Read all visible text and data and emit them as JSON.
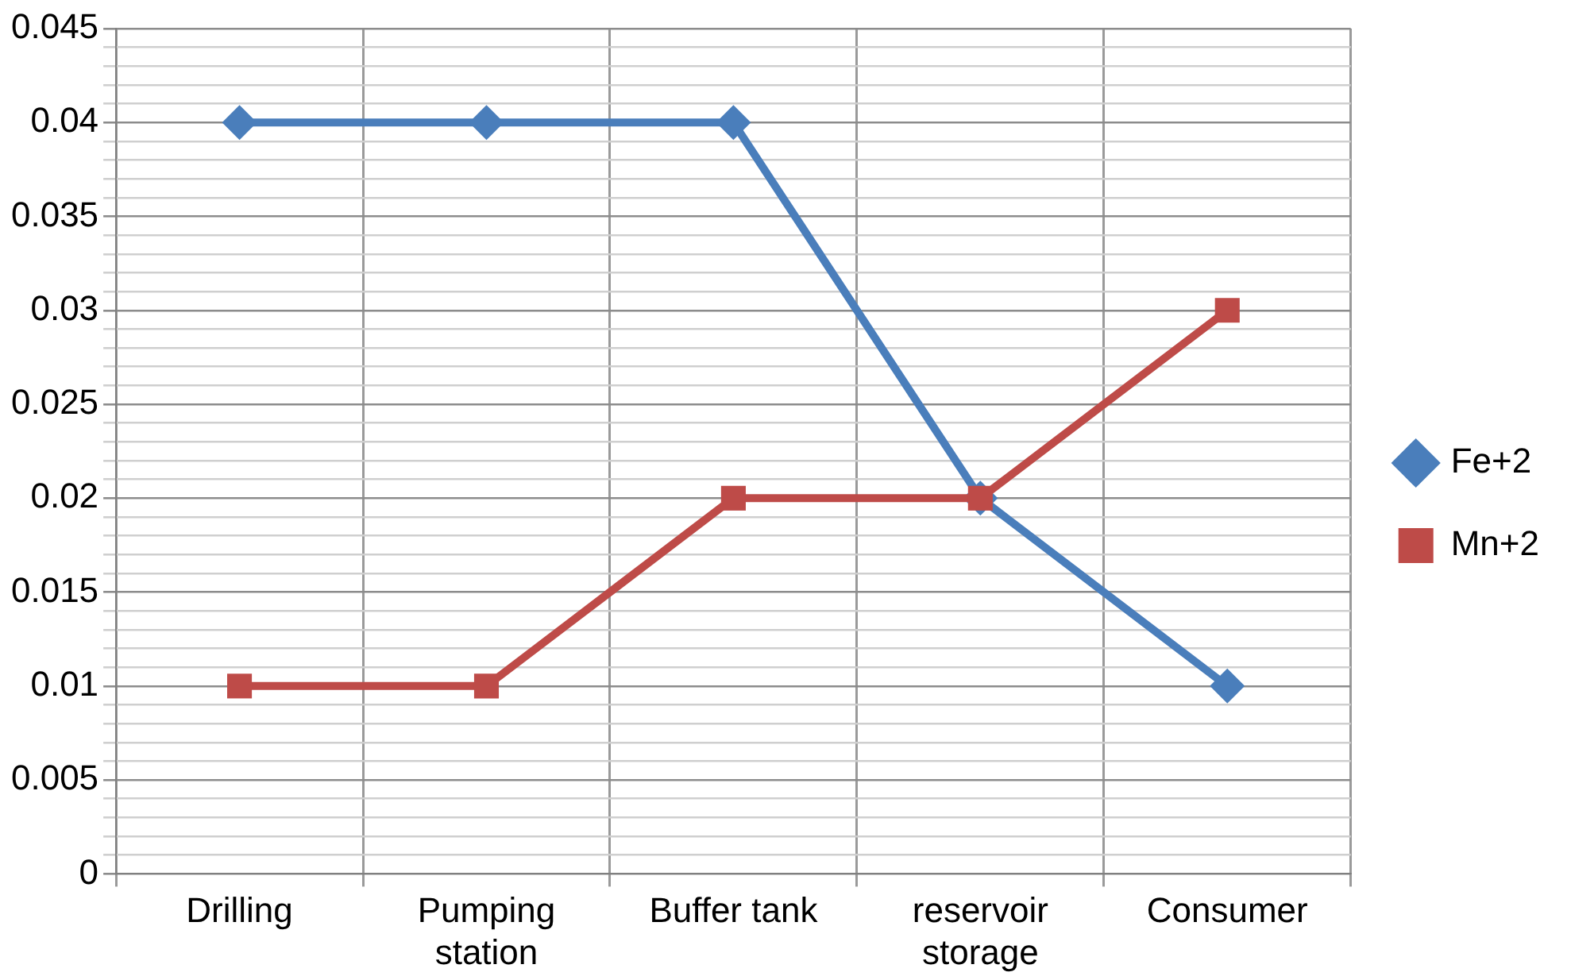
{
  "chart_data": {
    "type": "line",
    "categories": [
      "Drilling",
      "Pumping station",
      "Buffer tank",
      "reservoir storage",
      "Consumer"
    ],
    "series": [
      {
        "name": "Fe+2",
        "color": "#4a7ebb",
        "marker": "diamond",
        "values": [
          0.04,
          0.04,
          0.04,
          0.02,
          0.01
        ]
      },
      {
        "name": "Mn+2",
        "color": "#be4b48",
        "marker": "square",
        "values": [
          0.01,
          0.01,
          0.02,
          0.02,
          0.03
        ]
      }
    ],
    "ylim": [
      0,
      0.045
    ],
    "yticks": [
      0,
      {
        "value": 0.001,
        "label": null
      },
      {
        "value": 0.002,
        "label": null
      },
      {
        "value": 0.003,
        "label": null
      },
      {
        "value": 0.004,
        "label": null
      },
      0.005,
      {
        "value": 0.006,
        "label": null
      },
      {
        "value": 0.007,
        "label": null
      },
      {
        "value": 0.008,
        "label": null
      },
      {
        "value": 0.009,
        "label": null
      },
      0.01,
      {
        "value": 0.011,
        "label": null
      },
      {
        "value": 0.012,
        "label": null
      },
      {
        "value": 0.013,
        "label": null
      },
      {
        "value": 0.014,
        "label": null
      },
      0.015,
      {
        "value": 0.016,
        "label": null
      },
      {
        "value": 0.017,
        "label": null
      },
      {
        "value": 0.018,
        "label": null
      },
      {
        "value": 0.019,
        "label": null
      },
      0.02,
      {
        "value": 0.021,
        "label": null
      },
      {
        "value": 0.022,
        "label": null
      },
      {
        "value": 0.023,
        "label": null
      },
      {
        "value": 0.024,
        "label": null
      },
      0.025,
      {
        "value": 0.026,
        "label": null
      },
      {
        "value": 0.027,
        "label": null
      },
      {
        "value": 0.028,
        "label": null
      },
      {
        "value": 0.029,
        "label": null
      },
      0.03,
      {
        "value": 0.031,
        "label": null
      },
      {
        "value": 0.032,
        "label": null
      },
      {
        "value": 0.033,
        "label": null
      },
      {
        "value": 0.034,
        "label": null
      },
      0.035,
      {
        "value": 0.036,
        "label": null
      },
      {
        "value": 0.037,
        "label": null
      },
      {
        "value": 0.038,
        "label": null
      },
      {
        "value": 0.039,
        "label": null
      },
      0.04,
      {
        "value": 0.041,
        "label": null
      },
      {
        "value": 0.042,
        "label": null
      },
      {
        "value": 0.043,
        "label": null
      },
      {
        "value": 0.044,
        "label": null
      },
      0.045
    ],
    "grid": true,
    "legend": "right",
    "line_style": "solid"
  }
}
